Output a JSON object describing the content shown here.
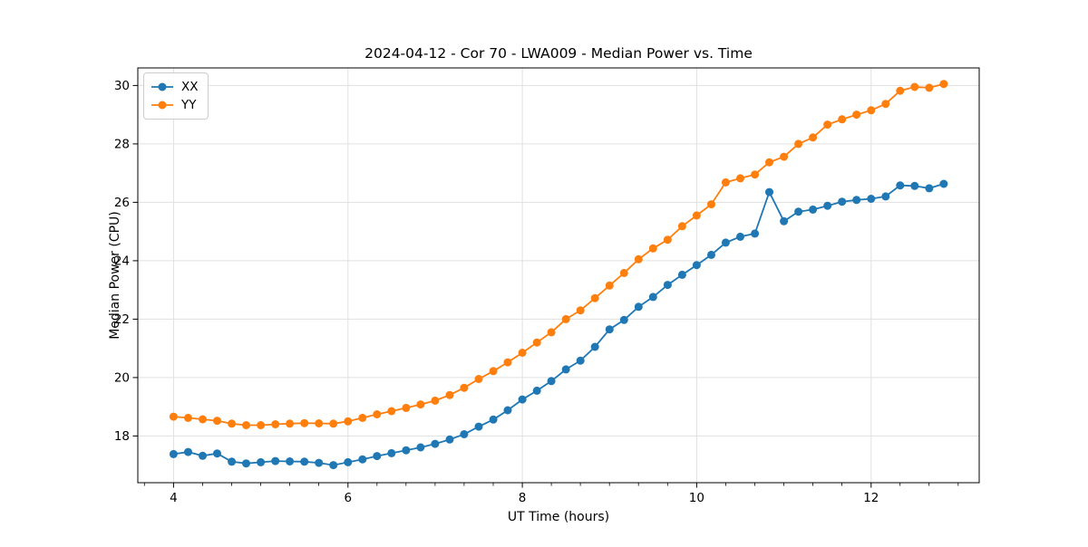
{
  "chart_data": {
    "type": "line",
    "title": "2024-04-12 - Cor 70 - LWA009 - Median Power vs. Time",
    "xlabel": "UT Time (hours)",
    "ylabel": "Median Power (CPU)",
    "xlim": [
      3.59,
      13.24
    ],
    "ylim": [
      16.4,
      30.6
    ],
    "xticks": [
      4,
      6,
      8,
      10,
      12
    ],
    "yticks": [
      18,
      20,
      22,
      24,
      26,
      28,
      30
    ],
    "minor_xtick_step": 0.3333,
    "grid": true,
    "grid_color": "#e0e0e0",
    "legend_position": "upper left",
    "marker": "circle",
    "x": [
      4.0,
      4.167,
      4.333,
      4.5,
      4.667,
      4.833,
      5.0,
      5.167,
      5.333,
      5.5,
      5.667,
      5.833,
      6.0,
      6.167,
      6.333,
      6.5,
      6.667,
      6.833,
      7.0,
      7.167,
      7.333,
      7.5,
      7.667,
      7.833,
      8.0,
      8.167,
      8.333,
      8.5,
      8.667,
      8.833,
      9.0,
      9.167,
      9.333,
      9.5,
      9.667,
      9.833,
      10.0,
      10.167,
      10.333,
      10.5,
      10.667,
      10.833,
      11.0,
      11.167,
      11.333,
      11.5,
      11.667,
      11.833,
      12.0,
      12.167,
      12.333,
      12.5,
      12.667,
      12.833
    ],
    "series": [
      {
        "name": "XX",
        "color": "#1f77b4",
        "values": [
          17.38,
          17.45,
          17.32,
          17.4,
          17.12,
          17.06,
          17.1,
          17.14,
          17.13,
          17.12,
          17.08,
          17.0,
          17.1,
          17.2,
          17.31,
          17.41,
          17.51,
          17.61,
          17.73,
          17.88,
          18.06,
          18.32,
          18.56,
          18.88,
          19.25,
          19.55,
          19.88,
          20.28,
          20.58,
          21.05,
          21.65,
          21.97,
          22.42,
          22.76,
          23.17,
          23.52,
          23.85,
          24.2,
          24.62,
          24.82,
          24.93,
          26.35,
          25.35,
          25.68,
          25.75,
          25.88,
          26.02,
          26.08,
          26.12,
          26.2,
          26.58,
          26.56,
          26.48,
          26.63
        ]
      },
      {
        "name": "YY",
        "color": "#ff7f0e",
        "values": [
          18.66,
          18.62,
          18.57,
          18.52,
          18.42,
          18.37,
          18.37,
          18.4,
          18.42,
          18.44,
          18.43,
          18.42,
          18.5,
          18.62,
          18.74,
          18.85,
          18.96,
          19.08,
          19.21,
          19.4,
          19.65,
          19.95,
          20.22,
          20.52,
          20.85,
          21.2,
          21.55,
          22.0,
          22.3,
          22.72,
          23.15,
          23.58,
          24.05,
          24.42,
          24.72,
          25.18,
          25.55,
          25.93,
          26.68,
          26.82,
          26.95,
          27.37,
          27.56,
          28.0,
          28.22,
          28.66,
          28.84,
          29.0,
          29.15,
          29.37,
          29.82,
          29.95,
          29.92,
          30.05
        ]
      }
    ]
  }
}
